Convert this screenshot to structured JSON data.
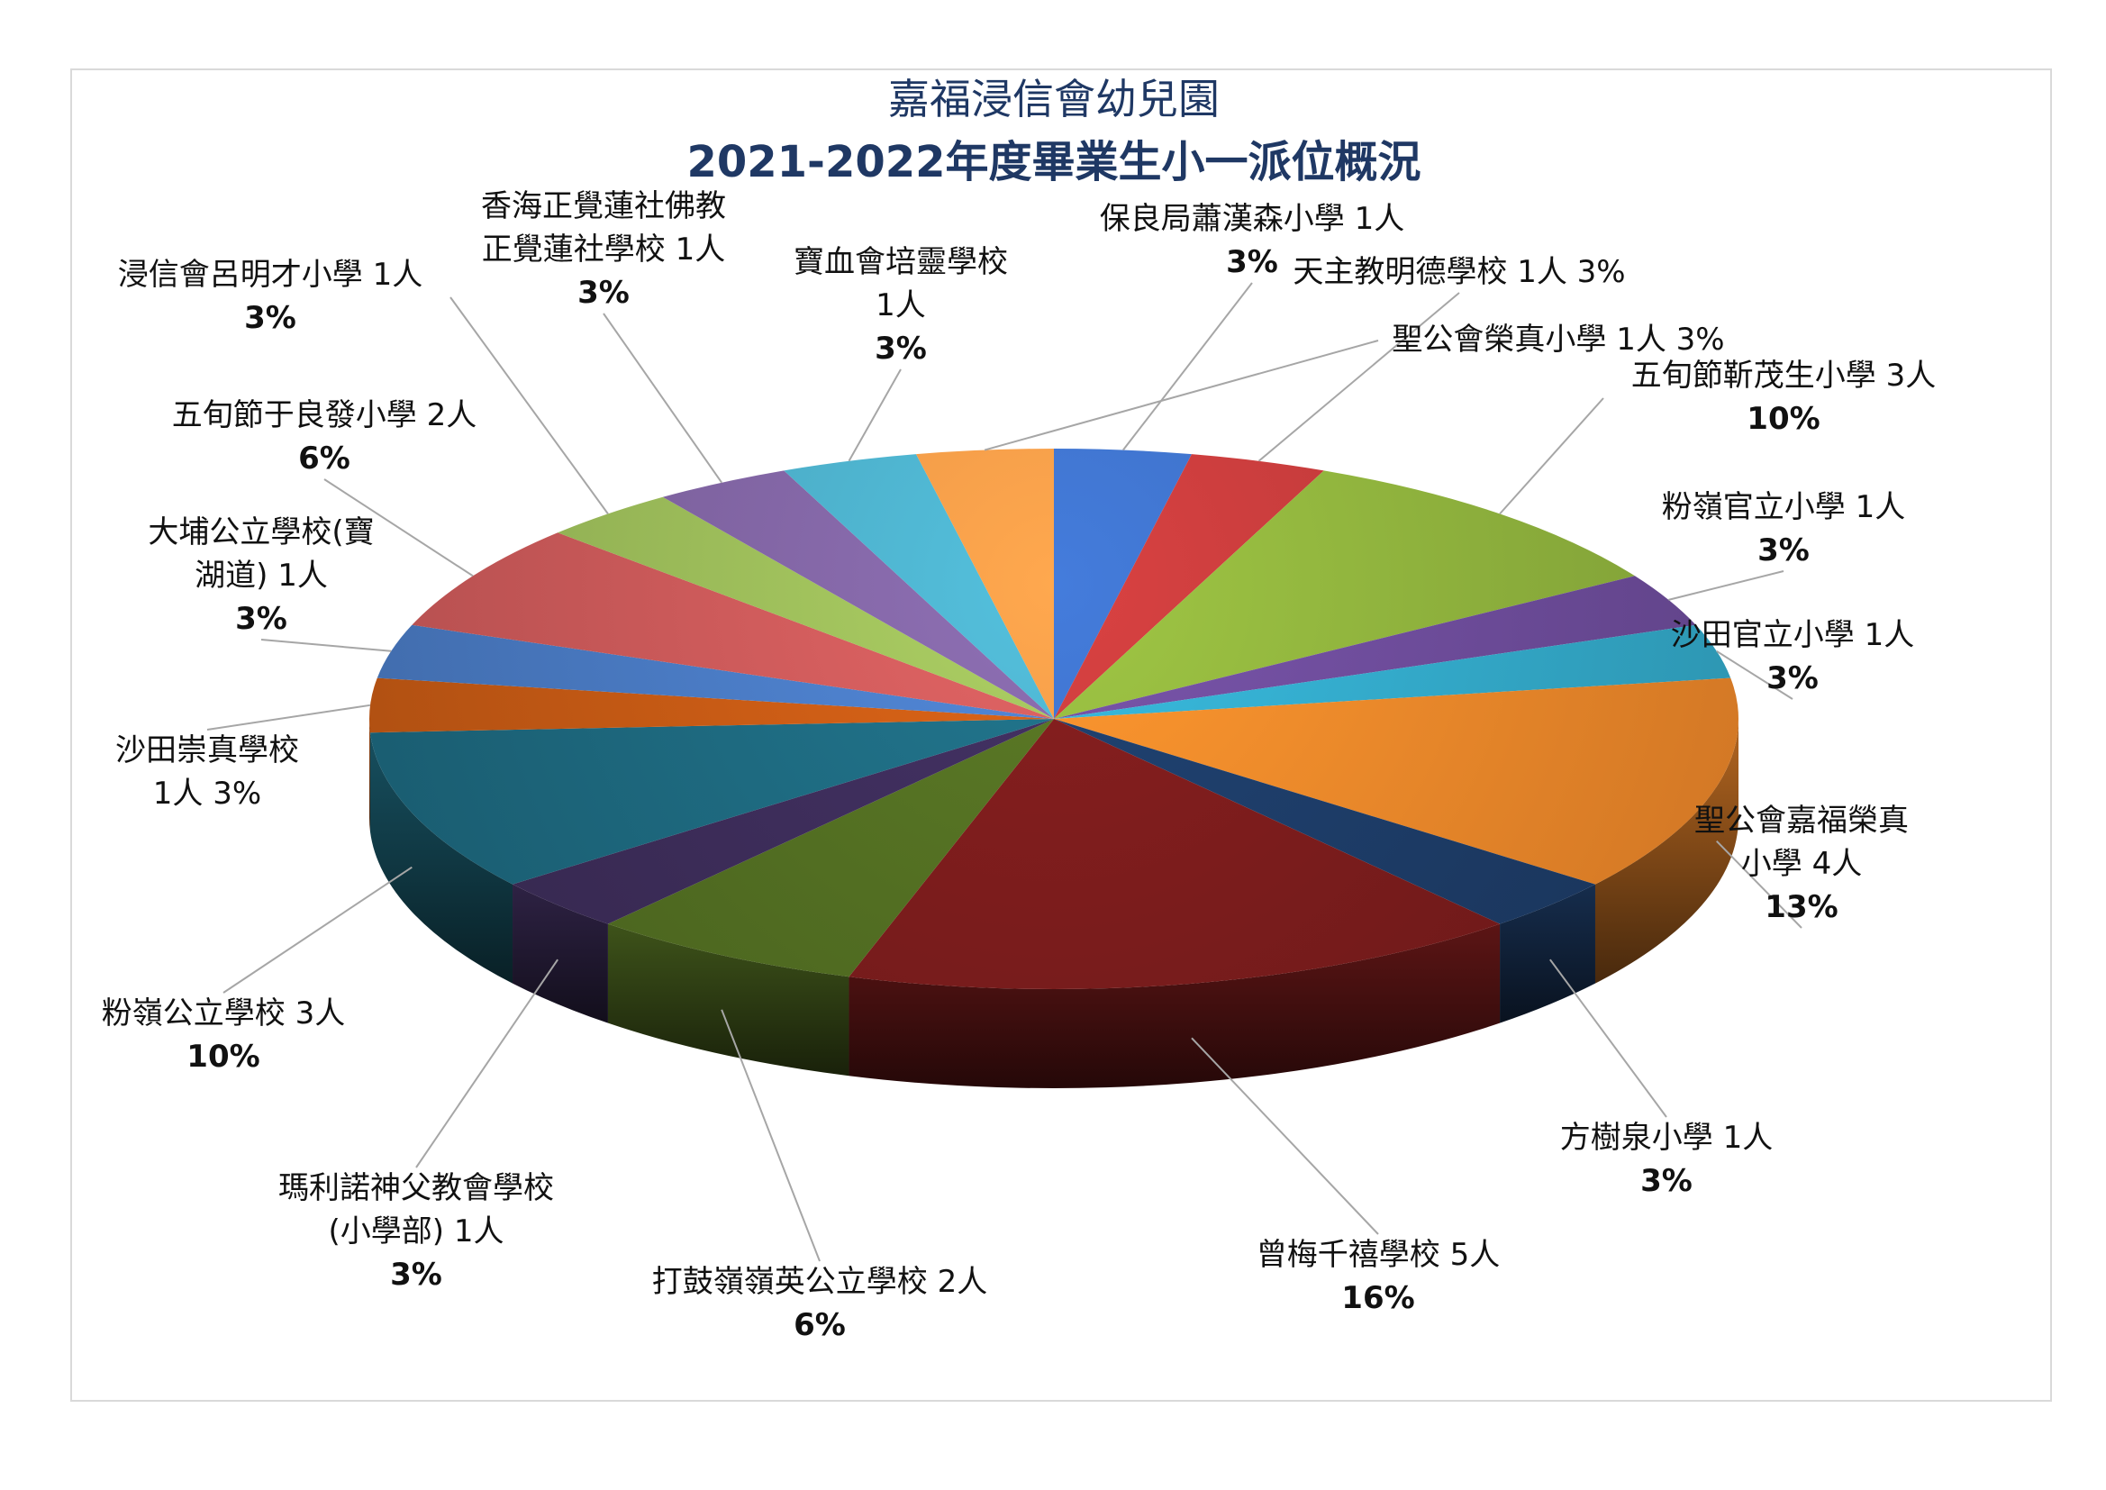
{
  "chart_data": {
    "type": "pie",
    "title": "嘉福浸信會幼兒園",
    "subtitle": "2021-2022年度畢業生小一派位概況",
    "categories": [
      "保良局蕭漢森小學",
      "天主教明德學校",
      "五旬節靳茂生小學",
      "粉嶺官立小學",
      "沙田官立小學",
      "聖公會嘉福榮真小學",
      "方樹泉小學",
      "曾梅千禧學校",
      "打鼓嶺嶺英公立學校",
      "瑪利諾神父教會學校(小學部)",
      "粉嶺公立學校",
      "沙田崇真學校",
      "大埔公立學校(寶湖道)",
      "五旬節于良發小學",
      "浸信會呂明才小學",
      "香海正覺蓮社佛教正覺蓮社學校",
      "寶血會培靈學校",
      "聖公會榮真小學"
    ],
    "values": [
      1,
      1,
      3,
      1,
      1,
      4,
      1,
      5,
      2,
      1,
      3,
      1,
      1,
      2,
      1,
      1,
      1,
      1
    ],
    "percentages": [
      "3%",
      "3%",
      "10%",
      "3%",
      "3%",
      "13%",
      "3%",
      "16%",
      "6%",
      "3%",
      "10%",
      "3%",
      "3%",
      "6%",
      "3%",
      "3%",
      "3%",
      "3%"
    ],
    "colors": [
      "#3d6fc4",
      "#c33b3b",
      "#8fb23d",
      "#6d4c9a",
      "#33a9c9",
      "#f0882a",
      "#1d3c67",
      "#7a1c1c",
      "#526e22",
      "#3d2d5a",
      "#1e6a80",
      "#c85b15",
      "#4a7bc4",
      "#cc5a5a",
      "#9bbb59",
      "#8064a2",
      "#4bacc6",
      "#f79646"
    ],
    "labels": [
      {
        "lines": [
          "保良局蕭漢森小學 1人",
          "3%"
        ]
      },
      {
        "lines": [
          "天主教明德學校 1人   3%"
        ]
      },
      {
        "lines": [
          "五旬節靳茂生小學 3人",
          "10%"
        ]
      },
      {
        "lines": [
          "粉嶺官立小學 1人",
          "3%"
        ]
      },
      {
        "lines": [
          "沙田官立小學 1人",
          "3%"
        ]
      },
      {
        "lines": [
          "聖公會嘉福榮真",
          "小學 4人",
          "13%"
        ]
      },
      {
        "lines": [
          "方樹泉小學 1人",
          "3%"
        ]
      },
      {
        "lines": [
          "曾梅千禧學校 5人",
          "16%"
        ]
      },
      {
        "lines": [
          "打鼓嶺嶺英公立學校 2人",
          "6%"
        ]
      },
      {
        "lines": [
          "瑪利諾神父教會學校",
          "(小學部) 1人",
          "3%"
        ]
      },
      {
        "lines": [
          "粉嶺公立學校 3人",
          "10%"
        ]
      },
      {
        "lines": [
          "沙田崇真學校",
          "1人  3%"
        ]
      },
      {
        "lines": [
          "大埔公立學校(寶",
          "湖道) 1人",
          "3%"
        ]
      },
      {
        "lines": [
          "五旬節于良發小學 2人",
          "6%"
        ]
      },
      {
        "lines": [
          "浸信會呂明才小學 1人",
          "3%"
        ]
      },
      {
        "lines": [
          "香海正覺蓮社佛教",
          "正覺蓮社學校 1人",
          "3%"
        ]
      },
      {
        "lines": [
          "寶血會培靈學校",
          "1人",
          "3%"
        ]
      },
      {
        "lines": [
          "聖公會榮真小學 1人   3%"
        ]
      }
    ],
    "legend": "none"
  }
}
